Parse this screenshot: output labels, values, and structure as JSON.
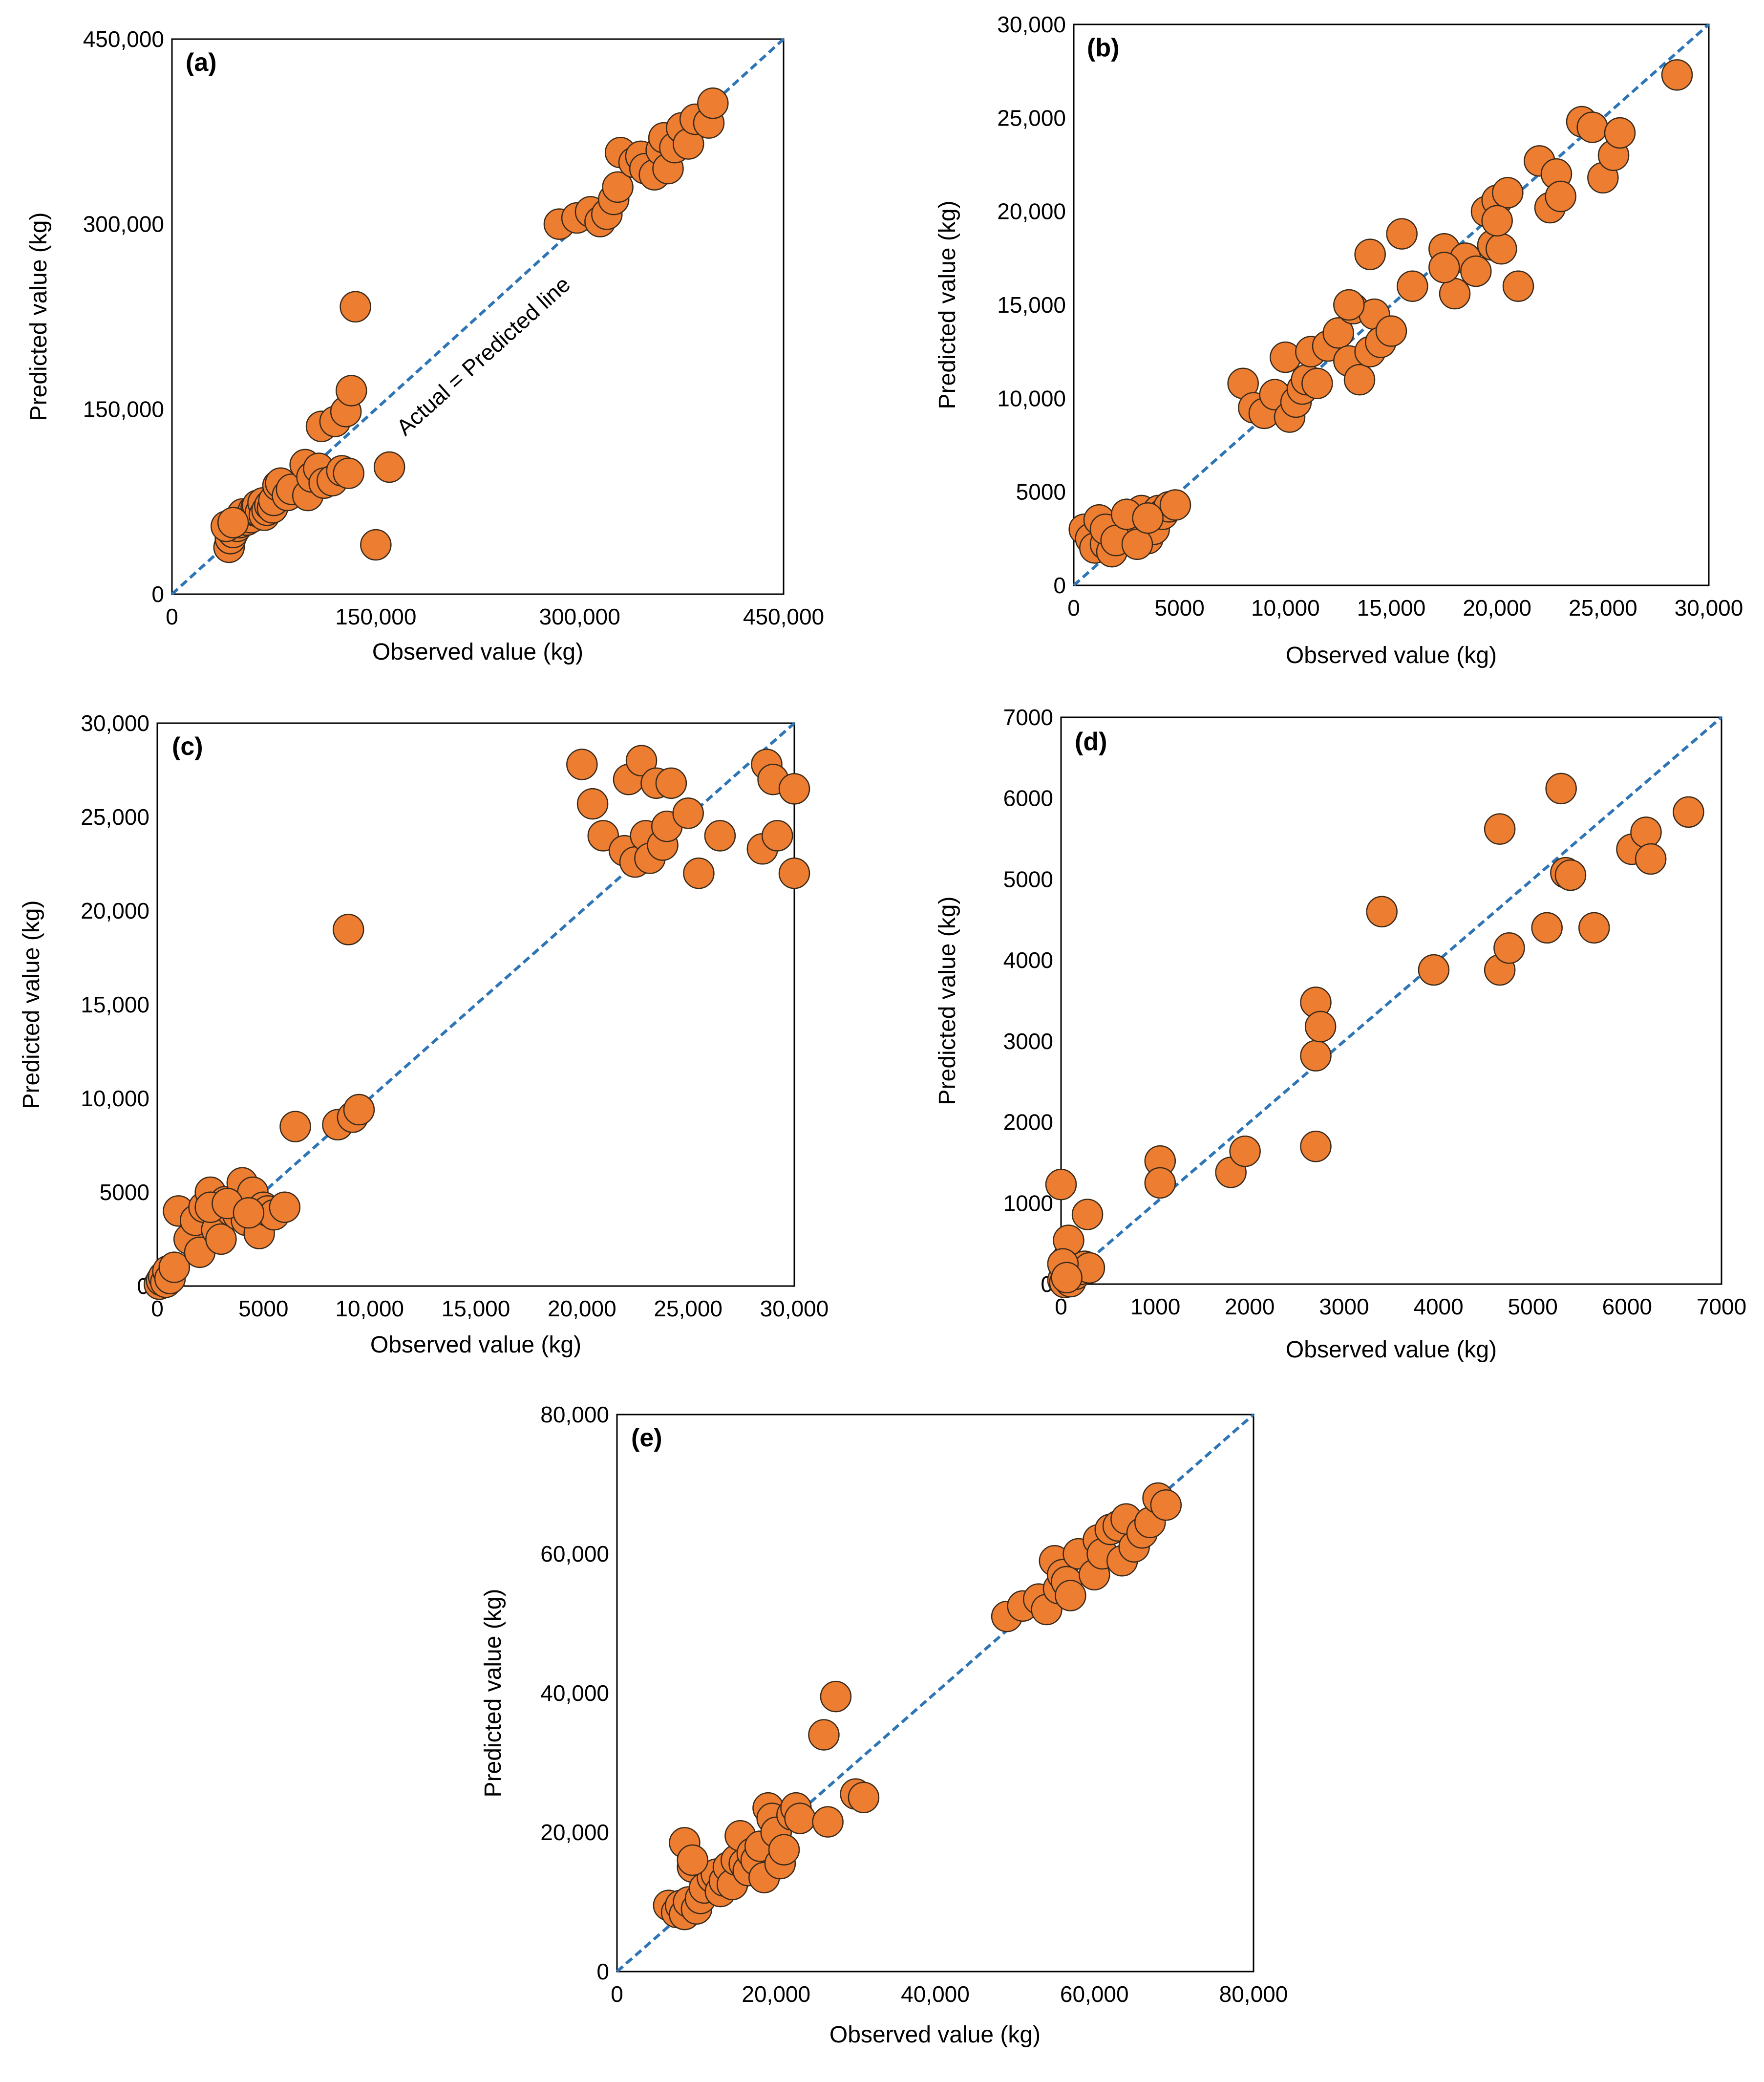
{
  "colors": {
    "marker_fill": "#ED7D31",
    "marker_stroke": "#3a2a1a",
    "reference_line": "#2E75B6",
    "frame": "#000000"
  },
  "chart_data": [
    {
      "type": "scatter",
      "panel_label": "(a)",
      "xlabel": "Observed value (kg)",
      "ylabel": "Predicted value (kg)",
      "xlim": [
        0,
        450000
      ],
      "ylim": [
        0,
        450000
      ],
      "xticks": [
        0,
        150000,
        300000,
        450000
      ],
      "xtick_labels": [
        "0",
        "150,000",
        "300,000",
        "450,000"
      ],
      "yticks": [
        0,
        150000,
        300000,
        450000
      ],
      "ytick_labels": [
        "0",
        "150,000",
        "300,000",
        "450,000"
      ],
      "reference_line": {
        "label": "Actual = Predicted line",
        "from": [
          0,
          0
        ],
        "to": [
          450000,
          450000
        ]
      },
      "x": [
        42000,
        43000,
        45000,
        48000,
        50000,
        52000,
        55000,
        58000,
        60000,
        62000,
        63000,
        65000,
        67000,
        68000,
        70000,
        72000,
        74000,
        75000,
        78000,
        80000,
        85000,
        88000,
        98000,
        100000,
        103000,
        108000,
        110000,
        112000,
        118000,
        120000,
        125000,
        128000,
        130000,
        132000,
        135000,
        150000,
        160000,
        40000,
        45000,
        285000,
        298000,
        308000,
        315000,
        320000,
        325000,
        328000,
        330000,
        340000,
        345000,
        348000,
        355000,
        360000,
        362000,
        365000,
        370000,
        375000,
        380000,
        385000,
        395000,
        398000
      ],
      "y": [
        38000,
        45000,
        50000,
        55000,
        58000,
        65000,
        60000,
        62000,
        68000,
        70000,
        72000,
        66000,
        74000,
        64000,
        68000,
        72000,
        70000,
        76000,
        88000,
        90000,
        80000,
        85000,
        105000,
        80000,
        95000,
        102000,
        136000,
        90000,
        92000,
        140000,
        100000,
        148000,
        98000,
        165000,
        233000,
        40000,
        103000,
        55000,
        58000,
        300000,
        305000,
        310000,
        302000,
        308000,
        320000,
        330000,
        358000,
        350000,
        355000,
        345000,
        340000,
        360000,
        370000,
        345000,
        362000,
        378000,
        365000,
        385000,
        382000,
        398000
      ]
    },
    {
      "type": "scatter",
      "panel_label": "(b)",
      "xlabel": "Observed value (kg)",
      "ylabel": "Predicted value (kg)",
      "xlim": [
        0,
        30000
      ],
      "ylim": [
        0,
        30000
      ],
      "xticks": [
        0,
        5000,
        10000,
        15000,
        20000,
        25000,
        30000
      ],
      "xtick_labels": [
        "0",
        "5000",
        "10,000",
        "15,000",
        "20,000",
        "25,000",
        "30,000"
      ],
      "yticks": [
        0,
        5000,
        10000,
        15000,
        20000,
        25000,
        30000
      ],
      "ytick_labels": [
        "0",
        "5000",
        "10,000",
        "15,000",
        "20,000",
        "25,000",
        "30,000"
      ],
      "reference_line": {
        "label": "",
        "from": [
          0,
          0
        ],
        "to": [
          30000,
          30000
        ]
      },
      "x": [
        500,
        800,
        1000,
        1200,
        1500,
        1800,
        2000,
        2200,
        2500,
        2800,
        3000,
        3200,
        3500,
        3800,
        4000,
        4200,
        4500,
        4800,
        1500,
        2000,
        2500,
        3000,
        3500,
        8000,
        8500,
        9000,
        9500,
        10000,
        10200,
        10500,
        10800,
        11000,
        11200,
        11500,
        12000,
        12500,
        13000,
        13200,
        13500,
        14000,
        14200,
        14500,
        15000,
        15500,
        16000,
        14000,
        13000,
        17500,
        18000,
        18500,
        19000,
        19500,
        19800,
        20000,
        20200,
        20500,
        21000,
        22000,
        22500,
        22800,
        23000,
        24000,
        24500,
        25000,
        25500,
        25800,
        28500,
        17500,
        20000
      ],
      "y": [
        3000,
        2500,
        2000,
        3500,
        2200,
        1800,
        3000,
        2600,
        3500,
        2800,
        3200,
        4000,
        2500,
        3000,
        4000,
        3800,
        4200,
        4300,
        3000,
        2400,
        3800,
        2200,
        3600,
        10800,
        9500,
        9200,
        10200,
        12200,
        9000,
        9800,
        10500,
        11000,
        12500,
        10800,
        12800,
        13500,
        12000,
        14800,
        11000,
        12500,
        14500,
        13000,
        13600,
        18800,
        16000,
        17700,
        15000,
        18000,
        15600,
        17500,
        16800,
        20000,
        18200,
        20600,
        18000,
        21000,
        16000,
        22700,
        20200,
        22000,
        20800,
        24800,
        24500,
        21800,
        23000,
        24200,
        27300,
        17000,
        19500
      ]
    },
    {
      "type": "scatter",
      "panel_label": "(c)",
      "xlabel": "Observed value (kg)",
      "ylabel": "Predicted value (kg)",
      "xlim": [
        0,
        30000
      ],
      "ylim": [
        0,
        30000
      ],
      "xticks": [
        0,
        5000,
        10000,
        15000,
        20000,
        25000,
        30000
      ],
      "xtick_labels": [
        "0",
        "5000",
        "10,000",
        "15,000",
        "20,000",
        "25,000",
        "30,000"
      ],
      "yticks": [
        0,
        5000,
        10000,
        15000,
        20000,
        25000,
        30000
      ],
      "ytick_labels": [
        "0",
        "5000",
        "10,000",
        "15,000",
        "20,000",
        "25,000",
        "30,000"
      ],
      "reference_line": {
        "label": "",
        "from": [
          0,
          0
        ],
        "to": [
          30000,
          30000
        ]
      },
      "x": [
        100,
        200,
        300,
        400,
        500,
        600,
        800,
        1000,
        1500,
        1800,
        2000,
        2200,
        2500,
        2800,
        3000,
        3200,
        3500,
        3800,
        4000,
        4200,
        4500,
        4800,
        5000,
        5200,
        5500,
        6000,
        6500,
        8500,
        9000,
        9200,
        9500,
        20000,
        20500,
        21000,
        22000,
        22200,
        22500,
        22800,
        23000,
        23200,
        23500,
        23800,
        24000,
        24200,
        25000,
        25500,
        26500,
        28500,
        28700,
        29000,
        29200,
        30000,
        30000,
        2500,
        3300,
        4300
      ],
      "y": [
        100,
        300,
        500,
        200,
        800,
        400,
        1000,
        4000,
        2500,
        3500,
        1800,
        4200,
        5000,
        3000,
        2500,
        4500,
        4000,
        3800,
        5500,
        3500,
        5000,
        2800,
        4200,
        4000,
        3800,
        4200,
        8500,
        8600,
        19000,
        9000,
        9400,
        27800,
        25700,
        24000,
        23200,
        27000,
        22600,
        28000,
        24000,
        22800,
        26800,
        23500,
        24500,
        26800,
        25200,
        22000,
        24000,
        23300,
        27800,
        27000,
        24000,
        26500,
        22000,
        4200,
        4400,
        3900
      ]
    },
    {
      "type": "scatter",
      "panel_label": "(d)",
      "xlabel": "Observed value (kg)",
      "ylabel": "Predicted value (kg)",
      "xlim": [
        0,
        7000
      ],
      "ylim": [
        0,
        7000
      ],
      "xticks": [
        0,
        1000,
        2000,
        3000,
        4000,
        5000,
        6000,
        7000
      ],
      "xtick_labels": [
        "0",
        "1000",
        "2000",
        "3000",
        "4000",
        "5000",
        "6000",
        "7000"
      ],
      "yticks": [
        0,
        1000,
        2000,
        3000,
        4000,
        5000,
        6000,
        7000
      ],
      "ytick_labels": [
        "0",
        "1000",
        "2000",
        "3000",
        "4000",
        "5000",
        "6000",
        "7000"
      ],
      "reference_line": {
        "label": "",
        "from": [
          0,
          0
        ],
        "to": [
          7000,
          7000
        ]
      },
      "x": [
        0,
        20,
        40,
        60,
        80,
        100,
        150,
        200,
        250,
        280,
        300,
        20,
        60,
        1050,
        1050,
        1800,
        1950,
        2700,
        2700,
        2700,
        2750,
        3400,
        3950,
        4650,
        4650,
        4750,
        5150,
        5300,
        5350,
        5400,
        5650,
        6050,
        6200,
        6250,
        6650
      ],
      "y": [
        1230,
        50,
        20,
        300,
        540,
        30,
        120,
        180,
        220,
        860,
        200,
        250,
        80,
        1520,
        1250,
        1380,
        1640,
        3480,
        2820,
        1700,
        3180,
        4600,
        3880,
        5620,
        3880,
        4150,
        4400,
        6120,
        5080,
        5050,
        4400,
        5370,
        5580,
        5250,
        5830
      ]
    },
    {
      "type": "scatter",
      "panel_label": "(e)",
      "xlabel": "Observed value (kg)",
      "ylabel": "Predicted value (kg)",
      "xlim": [
        0,
        80000
      ],
      "ylim": [
        0,
        80000
      ],
      "xticks": [
        0,
        20000,
        40000,
        60000,
        80000
      ],
      "xtick_labels": [
        "0",
        "20,000",
        "40,000",
        "60,000",
        "80,000"
      ],
      "yticks": [
        0,
        20000,
        40000,
        60000,
        80000
      ],
      "ytick_labels": [
        "0",
        "20,000",
        "40,000",
        "60,000",
        "80,000"
      ],
      "reference_line": {
        "label": "",
        "from": [
          0,
          0
        ],
        "to": [
          80000,
          80000
        ]
      },
      "x": [
        6500,
        7500,
        8000,
        8500,
        9000,
        9500,
        10000,
        10500,
        11000,
        12000,
        12500,
        13000,
        13500,
        14000,
        14500,
        15000,
        15500,
        16000,
        16500,
        17000,
        17500,
        18000,
        18500,
        19000,
        19500,
        20000,
        20500,
        21000,
        22000,
        22500,
        23000,
        26000,
        26500,
        27500,
        30000,
        31000,
        8500,
        9500,
        49000,
        51000,
        53000,
        54000,
        55000,
        55500,
        56000,
        56500,
        57000,
        58000,
        60000,
        60500,
        61000,
        62000,
        63000,
        63500,
        64000,
        65000,
        66000,
        67000,
        68000,
        69000
      ],
      "y": [
        9500,
        8500,
        9500,
        8200,
        10000,
        15000,
        9000,
        10500,
        12000,
        13500,
        14000,
        11500,
        13000,
        15000,
        12500,
        16000,
        19500,
        15500,
        14500,
        17000,
        16000,
        18000,
        13500,
        23500,
        22000,
        20000,
        15500,
        17500,
        22500,
        23500,
        22000,
        34000,
        21500,
        39500,
        25500,
        25000,
        18500,
        16000,
        51000,
        52500,
        53500,
        52000,
        59000,
        55000,
        57000,
        56000,
        54000,
        60000,
        57000,
        62000,
        60000,
        63500,
        64000,
        59000,
        65000,
        61000,
        63000,
        64500,
        68000,
        67000
      ]
    }
  ]
}
